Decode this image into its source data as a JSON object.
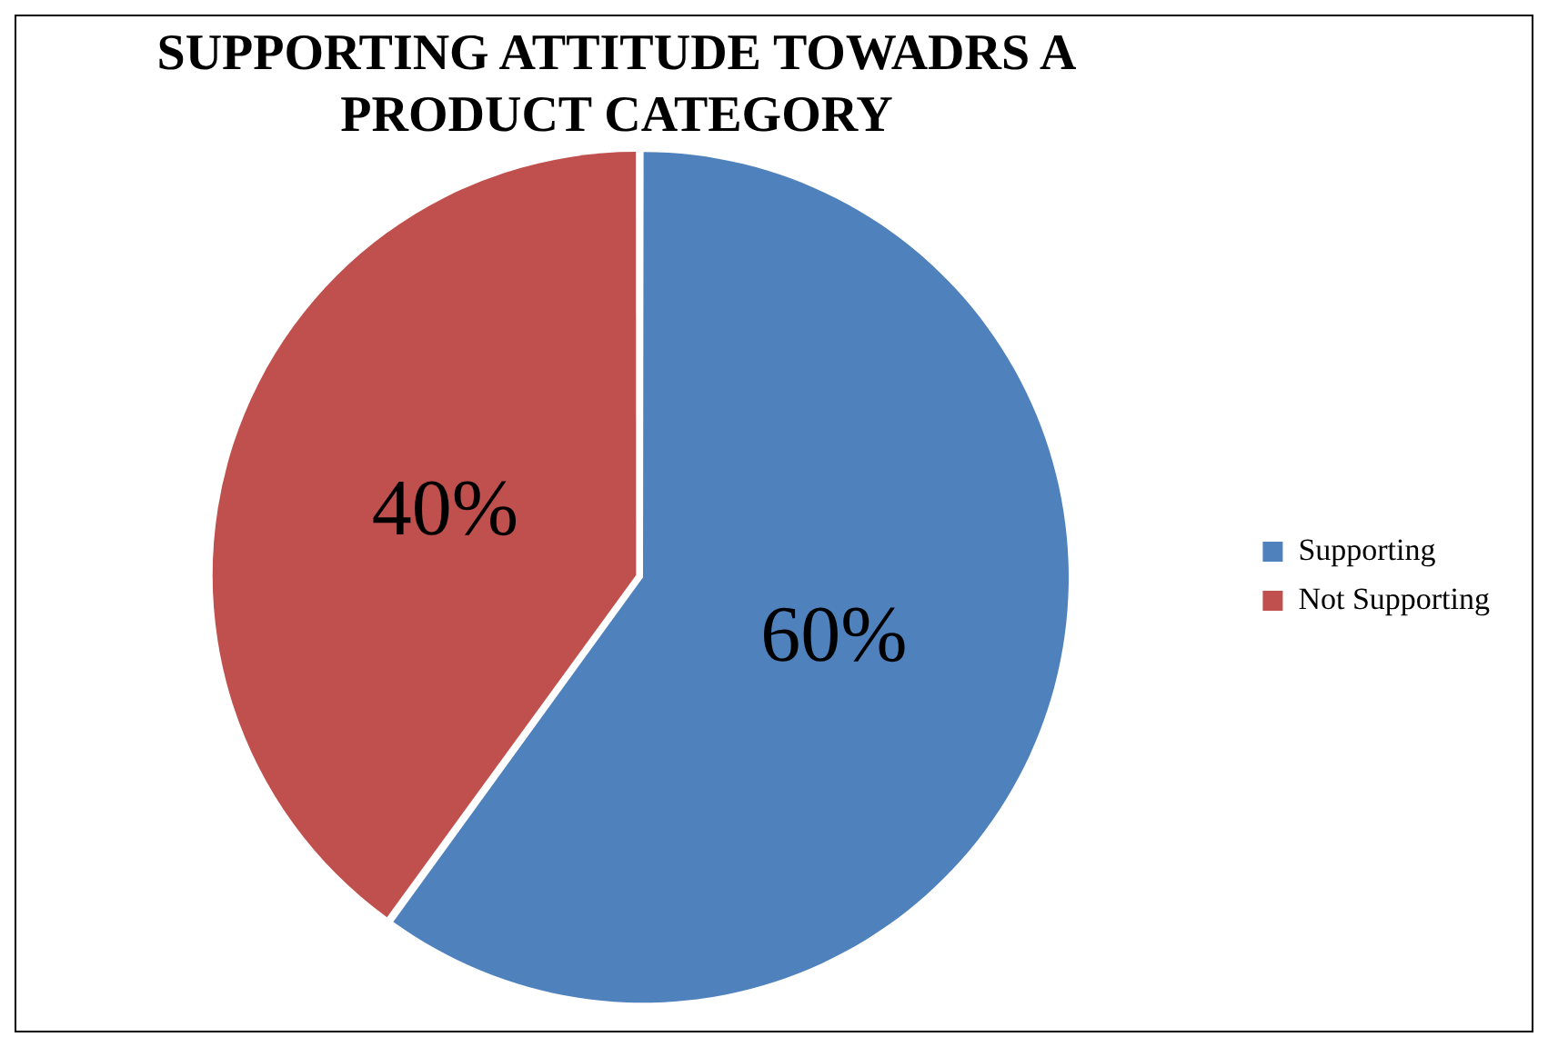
{
  "chart_data": {
    "type": "pie",
    "title": "SUPPORTING ATTITUDE TOWADRS A PRODUCT CATEGORY",
    "categories": [
      "Supporting",
      "Not Supporting"
    ],
    "values": [
      60,
      40
    ],
    "colors": [
      "#4f81bd",
      "#c0504d"
    ],
    "value_labels": [
      "60%",
      "40%"
    ],
    "legend": "right"
  }
}
